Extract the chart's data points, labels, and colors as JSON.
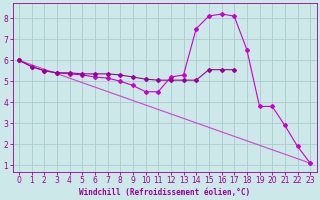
{
  "bg_color": "#cce8e8",
  "grid_color": "#aacccc",
  "line_color1": "#990099",
  "line_color2": "#cc00cc",
  "line_color3": "#cc44cc",
  "xlabel": "Windchill (Refroidissement éolien,°C)",
  "xlim": [
    -0.5,
    23.5
  ],
  "ylim": [
    0.7,
    8.7
  ],
  "xticks": [
    0,
    1,
    2,
    3,
    4,
    5,
    6,
    7,
    8,
    9,
    10,
    11,
    12,
    13,
    14,
    15,
    16,
    17,
    18,
    19,
    20,
    21,
    22,
    23
  ],
  "yticks": [
    1,
    2,
    3,
    4,
    5,
    6,
    7,
    8
  ],
  "series1_x": [
    0,
    1,
    2,
    3,
    4,
    5,
    6,
    7,
    8,
    9,
    10,
    11,
    12,
    13,
    14,
    15,
    16,
    17
  ],
  "series1_y": [
    6.0,
    5.7,
    5.5,
    5.4,
    5.4,
    5.35,
    5.35,
    5.35,
    5.3,
    5.2,
    5.1,
    5.05,
    5.05,
    5.05,
    5.05,
    5.55,
    5.55,
    5.55
  ],
  "series2_x": [
    0,
    1,
    2,
    3,
    4,
    5,
    6,
    7,
    8,
    9,
    10,
    11,
    12,
    13,
    14,
    15,
    16,
    17,
    18,
    19,
    20,
    21,
    22,
    23
  ],
  "series2_y": [
    6.0,
    5.7,
    5.5,
    5.4,
    5.35,
    5.3,
    5.2,
    5.15,
    5.0,
    4.8,
    4.5,
    4.5,
    5.2,
    5.3,
    7.5,
    8.1,
    8.2,
    8.1,
    6.5,
    3.8,
    3.8,
    2.9,
    1.9,
    1.1
  ],
  "series3_x": [
    0,
    23
  ],
  "series3_y": [
    6.0,
    1.1
  ],
  "font_size": 5.5,
  "marker": "D",
  "markersize": 2.0,
  "linewidth": 0.8
}
